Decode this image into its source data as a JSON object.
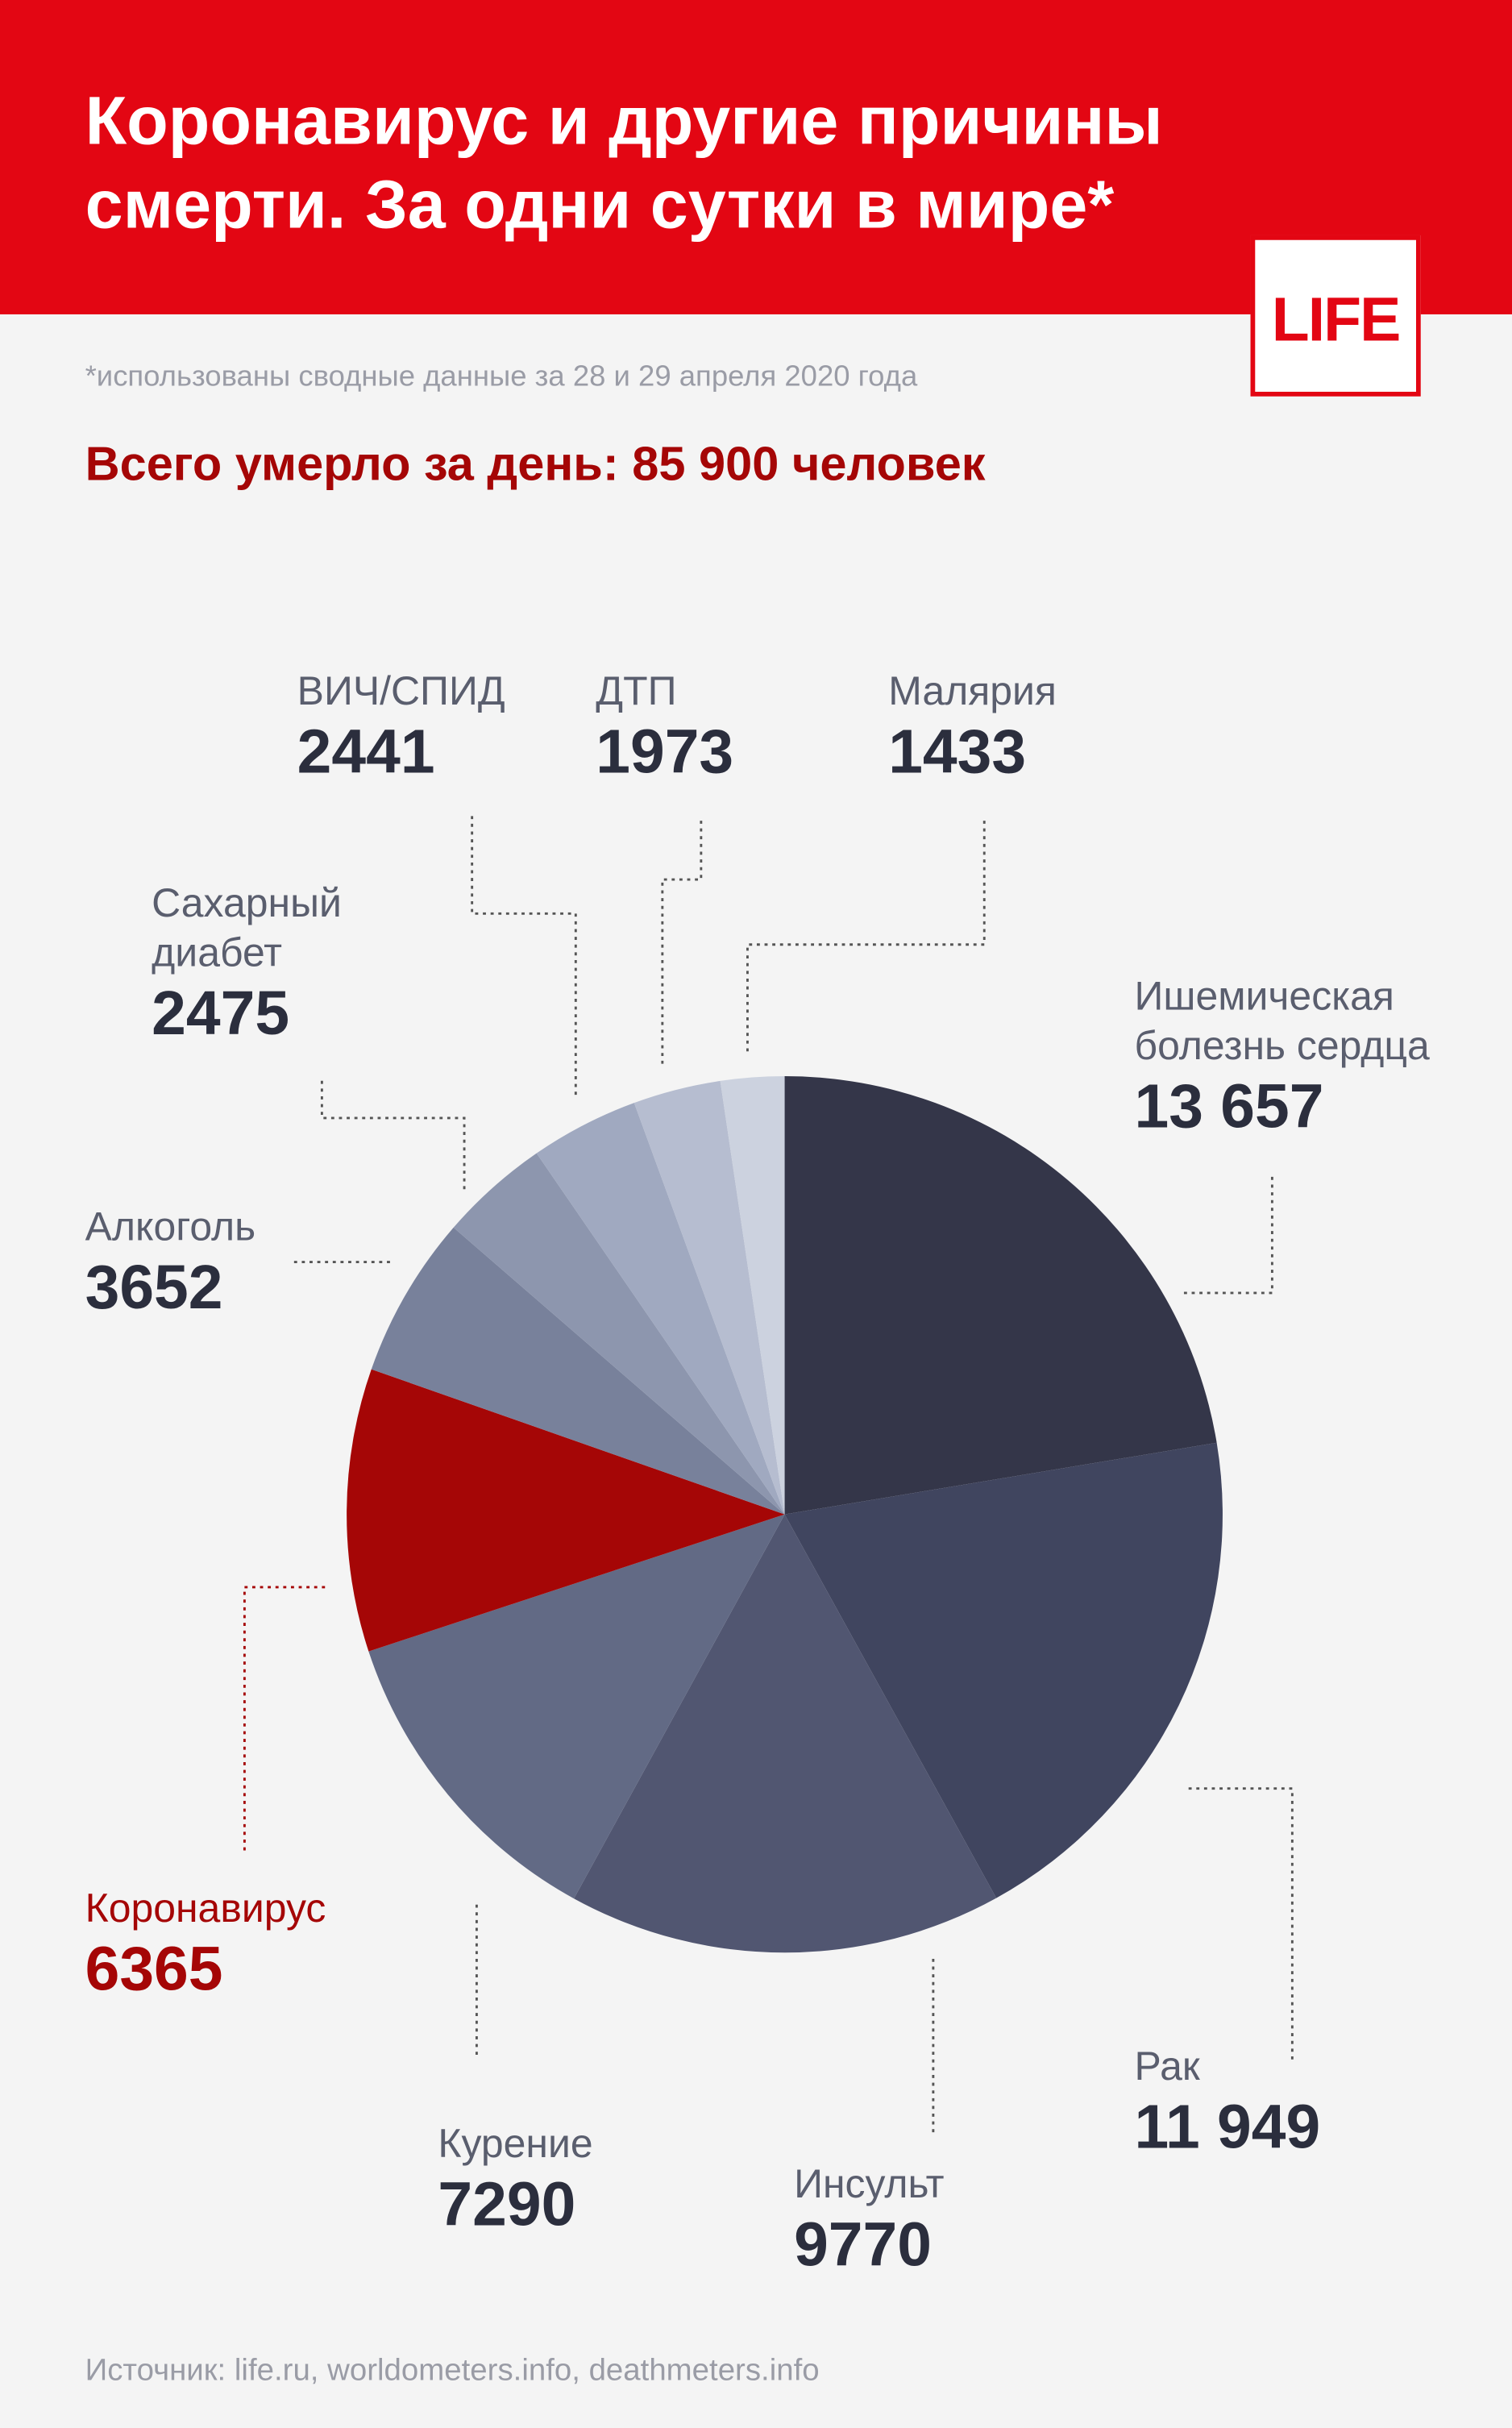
{
  "header": {
    "title": "Коронавирус и другие причины\nсмерти. За одни сутки в мире*",
    "logo": "LIFE"
  },
  "chart_data": {
    "type": "pie",
    "note": "*использованы сводные данные за 28 и 29 апреля 2020 года",
    "subtitle": "Всего умерло за день: 85 900 человек",
    "categories": [
      "Ишемическая\nболезнь сердца",
      "Рак",
      "Инсульт",
      "Курение",
      "Коронавирус",
      "Алкоголь",
      "Сахарный\nдиабет",
      "ВИЧ/СПИД",
      "ДТП",
      "Малярия"
    ],
    "values": [
      13657,
      11949,
      9770,
      7290,
      6365,
      3652,
      2475,
      2441,
      1973,
      1433
    ],
    "value_labels": [
      "13 657",
      "11 949",
      "9770",
      "7290",
      "6365",
      "3652",
      "2475",
      "2441",
      "1973",
      "1433"
    ],
    "colors": [
      "#343649",
      "#40455f",
      "#515671",
      "#626a85",
      "#a50606",
      "#78819b",
      "#8d96ae",
      "#a0a9c0",
      "#b6bdd0",
      "#ccd2df"
    ],
    "label_colors": [
      "#5a5e6e",
      "#5a5e6e",
      "#5a5e6e",
      "#5a5e6e",
      "#a50606",
      "#5a5e6e",
      "#5a5e6e",
      "#5a5e6e",
      "#5a5e6e",
      "#5a5e6e"
    ],
    "source": "Источник: life.ru, worldometers.info, deathmeters.info"
  }
}
